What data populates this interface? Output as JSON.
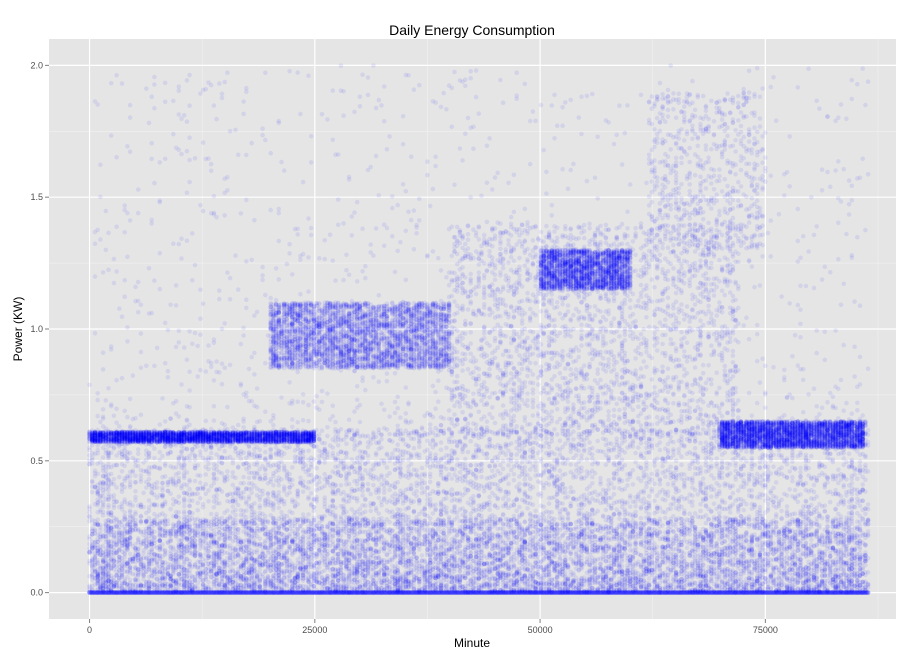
{
  "chart_data": {
    "type": "scatter",
    "title": "Daily Energy Consumption",
    "xlabel": "Minute",
    "ylabel": "Power (KW)",
    "xlim": [
      -4500,
      89500
    ],
    "ylim": [
      -0.1,
      2.1
    ],
    "x_ticks": [
      0,
      25000,
      50000,
      75000
    ],
    "x_tick_labels": [
      "0",
      "25000",
      "50000",
      "75000"
    ],
    "y_ticks": [
      0.0,
      0.5,
      1.0,
      1.5,
      2.0
    ],
    "y_tick_labels": [
      "0.0",
      "0.5",
      "1.0",
      "1.5",
      "2.0"
    ],
    "grid": true,
    "legend": "none",
    "point_color": "#0000ff",
    "point_alpha": 0.08,
    "panel_background": "#e5e5e5",
    "x_range_of_data": [
      0,
      86400
    ],
    "series": [
      {
        "values_note": "dense scatter of minute-level power readings",
        "bands": [
          {
            "x": [
              0,
              86400
            ],
            "y": [
              0.0,
              0.28
            ],
            "density": "very high"
          },
          {
            "x": [
              0,
              86400
            ],
            "y": [
              0.28,
              0.62
            ],
            "density": "high"
          },
          {
            "x": [
              0,
              25000
            ],
            "y": [
              0.57,
              0.61
            ],
            "density": "high"
          },
          {
            "x": [
              20000,
              40000
            ],
            "y": [
              0.85,
              1.1
            ],
            "density": "high"
          },
          {
            "x": [
              40000,
              72000
            ],
            "y": [
              0.6,
              1.4
            ],
            "density": "medium"
          },
          {
            "x": [
              50000,
              60000
            ],
            "y": [
              1.15,
              1.3
            ],
            "density": "medium"
          },
          {
            "x": [
              62000,
              75000
            ],
            "y": [
              1.3,
              1.9
            ],
            "density": "low"
          },
          {
            "x": [
              70000,
              86000
            ],
            "y": [
              0.55,
              0.65
            ],
            "density": "high"
          },
          {
            "x": [
              0,
              86400
            ],
            "y": [
              0.6,
              2.0
            ],
            "density": "sparse"
          }
        ]
      }
    ]
  }
}
